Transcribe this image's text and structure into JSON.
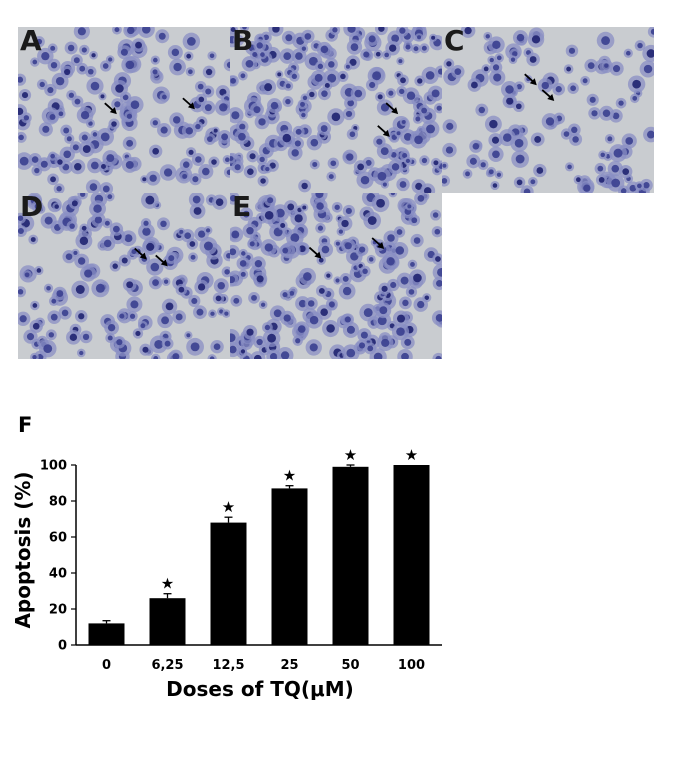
{
  "figure": {
    "panels": [
      {
        "letter": "A",
        "density": 0.55
      },
      {
        "letter": "B",
        "density": 0.75
      },
      {
        "letter": "C",
        "density": 0.45
      },
      {
        "letter": "D",
        "density": 0.6
      },
      {
        "letter": "E",
        "density": 0.8
      }
    ],
    "tissue_colors": {
      "background": "#c9ccd0",
      "cell": "#8a8fc4",
      "nucleus": "#3a3f8f",
      "dark": "#1f2270"
    }
  },
  "chart_label": "F",
  "chart_data": {
    "type": "bar",
    "categories": [
      "0",
      "6,25",
      "12,5",
      "25",
      "50",
      "100"
    ],
    "values": [
      12,
      26,
      68,
      87,
      99,
      100
    ],
    "errors": [
      1.5,
      2.5,
      3,
      1.5,
      1,
      0
    ],
    "significant": [
      false,
      true,
      true,
      true,
      true,
      true
    ],
    "significance_marker": "★",
    "title": "",
    "xlabel": "Doses of TQ(μM)",
    "ylabel": "Apoptosis (%)",
    "ylim": [
      0,
      100
    ],
    "yticks": [
      0,
      20,
      40,
      60,
      80,
      100
    ],
    "bar_color": "#000000",
    "grid": false
  }
}
